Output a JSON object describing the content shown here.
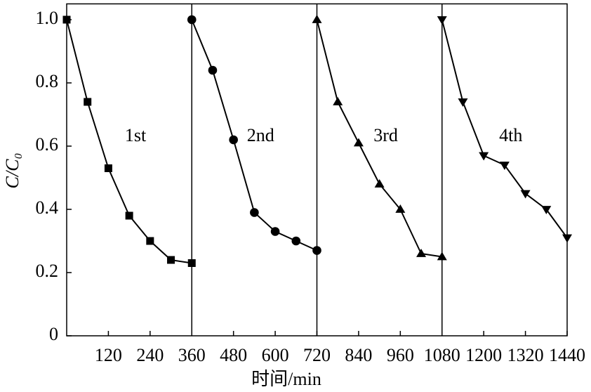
{
  "chart_data": {
    "type": "line",
    "xlabel": "时间/min",
    "ylabel": "C/C₀",
    "xlim": [
      0,
      1440
    ],
    "ylim": [
      0,
      1.05
    ],
    "xticks": [
      120,
      240,
      360,
      480,
      600,
      720,
      840,
      960,
      1080,
      1200,
      1320,
      1440
    ],
    "yticks": [
      0,
      0.2,
      0.4,
      0.6,
      0.8,
      {
        "value": 1,
        "label": "1.0"
      }
    ],
    "series": [
      {
        "name": "1st",
        "color": "#000000",
        "marker": "square",
        "x": [
          0,
          60,
          120,
          180,
          240,
          300,
          360
        ],
        "values": [
          1.0,
          0.74,
          0.53,
          0.38,
          0.3,
          0.24,
          0.23
        ]
      },
      {
        "name": "2nd",
        "color": "#000000",
        "marker": "circle",
        "x": [
          360,
          420,
          480,
          540,
          600,
          660,
          720
        ],
        "values": [
          1.0,
          0.84,
          0.62,
          0.39,
          0.33,
          0.3,
          0.27
        ]
      },
      {
        "name": "3rd",
        "color": "#000000",
        "marker": "triangle-up",
        "x": [
          720,
          780,
          840,
          900,
          960,
          1020,
          1080
        ],
        "values": [
          1.0,
          0.74,
          0.61,
          0.48,
          0.4,
          0.26,
          0.25
        ]
      },
      {
        "name": "4th",
        "color": "#000000",
        "marker": "triangle-down",
        "x": [
          1080,
          1140,
          1200,
          1260,
          1320,
          1380,
          1440
        ],
        "values": [
          1.0,
          0.74,
          0.57,
          0.54,
          0.45,
          0.4,
          0.31
        ]
      }
    ]
  }
}
